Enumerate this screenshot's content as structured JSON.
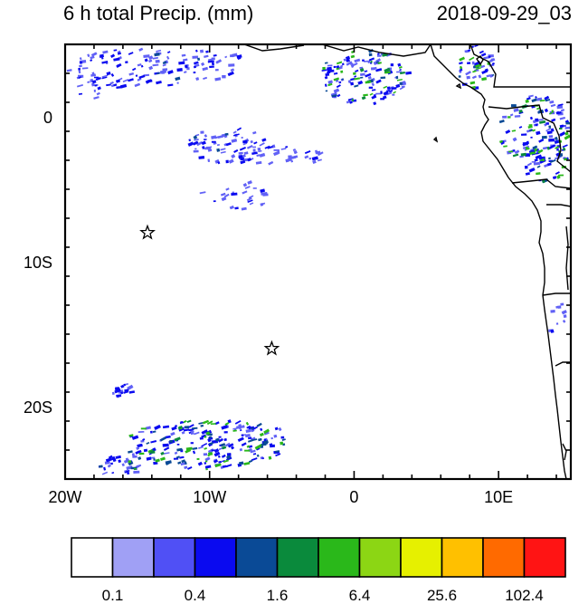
{
  "title_left": "6 h total Precip. (mm)",
  "title_right": "2018-09-29_03",
  "map": {
    "lon_range": [
      -20,
      15
    ],
    "lat_range": [
      -25,
      5
    ],
    "x_ticks": [
      {
        "value": -20,
        "label": "20W"
      },
      {
        "value": -10,
        "label": "10W"
      },
      {
        "value": 0,
        "label": "0"
      },
      {
        "value": 10,
        "label": "10E"
      }
    ],
    "y_ticks": [
      {
        "value": 0,
        "label": "0"
      },
      {
        "value": -10,
        "label": "10S"
      },
      {
        "value": -20,
        "label": "20S"
      }
    ],
    "stations": [
      {
        "lon": -14.3,
        "lat": -8.0
      },
      {
        "lon": -5.7,
        "lat": -16.0
      }
    ]
  },
  "colorbar": {
    "colors": [
      "#ffffff",
      "#a0a0f5",
      "#5050f5",
      "#0a0af0",
      "#0a4a96",
      "#0a8a3c",
      "#2ab81a",
      "#8cd614",
      "#e6f000",
      "#ffc000",
      "#ff6a00",
      "#ff1414"
    ],
    "labels": [
      {
        "index": 1,
        "text": "0.1"
      },
      {
        "index": 3,
        "text": "0.4"
      },
      {
        "index": 5,
        "text": "1.6"
      },
      {
        "index": 7,
        "text": "6.4"
      },
      {
        "index": 9,
        "text": "25.6"
      },
      {
        "index": 11,
        "text": "102.4"
      }
    ]
  }
}
